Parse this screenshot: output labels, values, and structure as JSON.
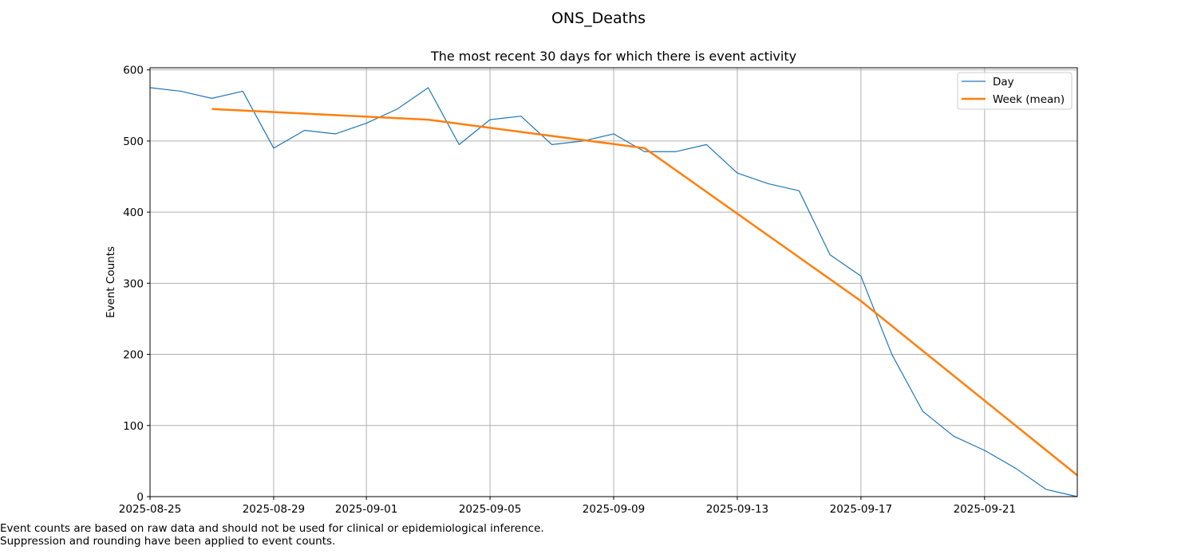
{
  "chart_data": {
    "type": "line",
    "suptitle": "ONS_Deaths",
    "title": "The most recent 30 days for which there is event activity",
    "xlabel": "",
    "ylabel": "Event Counts",
    "xlim": [
      "2025-08-25",
      "2025-09-24"
    ],
    "ylim": [
      0,
      603
    ],
    "x_ticks": [
      "2025-08-25",
      "2025-08-29",
      "2025-09-01",
      "2025-09-05",
      "2025-09-09",
      "2025-09-13",
      "2025-09-17",
      "2025-09-21"
    ],
    "y_ticks": [
      0,
      100,
      200,
      300,
      400,
      500,
      600
    ],
    "grid": true,
    "legend_position": "top-right",
    "series": [
      {
        "name": "Day",
        "color": "#1f77b4",
        "x": [
          "2025-08-25",
          "2025-08-26",
          "2025-08-27",
          "2025-08-28",
          "2025-08-29",
          "2025-08-30",
          "2025-08-31",
          "2025-09-01",
          "2025-09-02",
          "2025-09-03",
          "2025-09-04",
          "2025-09-05",
          "2025-09-06",
          "2025-09-07",
          "2025-09-08",
          "2025-09-09",
          "2025-09-10",
          "2025-09-11",
          "2025-09-12",
          "2025-09-13",
          "2025-09-14",
          "2025-09-15",
          "2025-09-16",
          "2025-09-17",
          "2025-09-18",
          "2025-09-19",
          "2025-09-20",
          "2025-09-21",
          "2025-09-22",
          "2025-09-23",
          "2025-09-24"
        ],
        "values": [
          575,
          570,
          560,
          570,
          490,
          515,
          510,
          525,
          545,
          575,
          495,
          530,
          535,
          495,
          500,
          510,
          485,
          485,
          495,
          455,
          440,
          430,
          340,
          310,
          200,
          120,
          85,
          65,
          40,
          10,
          0
        ]
      },
      {
        "name": "Week (mean)",
        "color": "#ff7f0e",
        "x": [
          "2025-08-27",
          "2025-09-03",
          "2025-09-10",
          "2025-09-17",
          "2025-09-24"
        ],
        "values": [
          545,
          530,
          490,
          275,
          30
        ]
      }
    ]
  },
  "footnotes": [
    "Event counts are based on raw data and should not be used for clinical or epidemiological inference.",
    "Suppression and rounding have been applied to event counts."
  ]
}
